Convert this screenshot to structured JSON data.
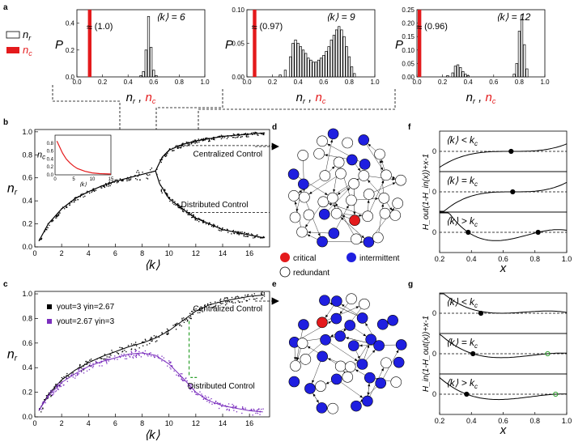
{
  "panels": {
    "a": "a",
    "b": "b",
    "c": "c",
    "d": "d",
    "e": "e",
    "f": "f",
    "g": "g"
  },
  "legend_a": {
    "nr": "n",
    "nr_sub": "r",
    "nc": "n",
    "nc_sub": "c"
  },
  "legend_c": {
    "s1": "γout=3 γin=2.67",
    "s2": "γout=2.67 γin=3"
  },
  "network_legend": {
    "critical": "critical",
    "intermittent": "intermittent",
    "redundant": "redundant"
  },
  "labels": {
    "centralized": "Centralized Control",
    "distributed": "Distributed Control",
    "kb_lt": "⟨k⟩ < k",
    "kb_eq": "⟨k⟩ = k",
    "kb_gt": "⟨k⟩ > k",
    "kc_sub": "c",
    "f_ylabel": "H_out(1-H_in(x))+x-1",
    "g_ylabel": "H_in(1-H_out(x))+x-1",
    "x": "x",
    "P": "P",
    "nrnc": "n_r , n_c",
    "kavg": "⟨k⟩",
    "inset_y": "n_c",
    "inset_x": "⟨k⟩"
  },
  "colors": {
    "red": "#e41a1c",
    "blue": "#1f1fe0",
    "purple": "#7b2fbe",
    "green": "#2ca02c"
  },
  "chart_data": [
    {
      "id": "a1",
      "type": "bar",
      "title": "⟨k⟩ = 6",
      "xlabel": "n_r , n_c",
      "ylabel": "P",
      "xlim": [
        0,
        1
      ],
      "ylim": [
        0,
        0.5
      ],
      "xticks": [
        "0.0",
        "0.2",
        "0.4",
        "0.6",
        "0.8",
        "1.0"
      ],
      "yticks": [
        "0.0",
        "0.2",
        "0.4"
      ],
      "annotation": "(1.0)",
      "nc_bars": [
        {
          "x": 0.1,
          "p": 0.5
        }
      ],
      "nr_bars": [
        {
          "x": 0.5,
          "p": 0.01
        },
        {
          "x": 0.52,
          "p": 0.04
        },
        {
          "x": 0.54,
          "p": 0.2
        },
        {
          "x": 0.56,
          "p": 0.45
        },
        {
          "x": 0.58,
          "p": 0.22
        },
        {
          "x": 0.6,
          "p": 0.05
        },
        {
          "x": 0.62,
          "p": 0.01
        }
      ]
    },
    {
      "id": "a2",
      "type": "bar",
      "title": "⟨k⟩ = 9",
      "xlabel": "n_r , n_c",
      "ylabel": "P",
      "xlim": [
        0,
        1
      ],
      "ylim": [
        0,
        0.1
      ],
      "xticks": [
        "0.0",
        "0.2",
        "0.4",
        "0.6",
        "0.8",
        "1.0"
      ],
      "yticks": [
        "0.00",
        "0.05",
        "0.10"
      ],
      "annotation": "(0.97)",
      "nc_bars": [
        {
          "x": 0.06,
          "p": 0.1
        }
      ],
      "nr_bars": [
        {
          "x": 0.26,
          "p": 0.003
        },
        {
          "x": 0.3,
          "p": 0.01
        },
        {
          "x": 0.34,
          "p": 0.03
        },
        {
          "x": 0.36,
          "p": 0.05
        },
        {
          "x": 0.38,
          "p": 0.055
        },
        {
          "x": 0.4,
          "p": 0.05
        },
        {
          "x": 0.42,
          "p": 0.045
        },
        {
          "x": 0.44,
          "p": 0.04
        },
        {
          "x": 0.46,
          "p": 0.035
        },
        {
          "x": 0.48,
          "p": 0.028
        },
        {
          "x": 0.5,
          "p": 0.025
        },
        {
          "x": 0.52,
          "p": 0.022
        },
        {
          "x": 0.54,
          "p": 0.022
        },
        {
          "x": 0.56,
          "p": 0.025
        },
        {
          "x": 0.58,
          "p": 0.028
        },
        {
          "x": 0.6,
          "p": 0.032
        },
        {
          "x": 0.62,
          "p": 0.038
        },
        {
          "x": 0.64,
          "p": 0.045
        },
        {
          "x": 0.66,
          "p": 0.055
        },
        {
          "x": 0.68,
          "p": 0.062
        },
        {
          "x": 0.7,
          "p": 0.07
        },
        {
          "x": 0.72,
          "p": 0.075
        },
        {
          "x": 0.74,
          "p": 0.07
        },
        {
          "x": 0.76,
          "p": 0.06
        },
        {
          "x": 0.78,
          "p": 0.045
        },
        {
          "x": 0.8,
          "p": 0.03
        },
        {
          "x": 0.82,
          "p": 0.015
        },
        {
          "x": 0.84,
          "p": 0.005
        }
      ]
    },
    {
      "id": "a3",
      "type": "bar",
      "title": "⟨k⟩ = 12",
      "xlabel": "n_r , n_c",
      "ylabel": "P",
      "xlim": [
        0,
        1
      ],
      "ylim": [
        0,
        0.25
      ],
      "xticks": [
        "0.0",
        "0.2",
        "0.4",
        "0.6",
        "0.8",
        "1.0"
      ],
      "yticks": [
        "0.00",
        "0.05",
        "0.10",
        "0.15",
        "0.20",
        "0.25"
      ],
      "annotation": "(0.96)",
      "nc_bars": [
        {
          "x": 0.02,
          "p": 0.25
        }
      ],
      "nr_bars": [
        {
          "x": 0.24,
          "p": 0.005
        },
        {
          "x": 0.28,
          "p": 0.015
        },
        {
          "x": 0.3,
          "p": 0.04
        },
        {
          "x": 0.32,
          "p": 0.045
        },
        {
          "x": 0.34,
          "p": 0.035
        },
        {
          "x": 0.36,
          "p": 0.02
        },
        {
          "x": 0.38,
          "p": 0.01
        },
        {
          "x": 0.4,
          "p": 0.005
        },
        {
          "x": 0.76,
          "p": 0.01
        },
        {
          "x": 0.78,
          "p": 0.05
        },
        {
          "x": 0.8,
          "p": 0.17
        },
        {
          "x": 0.82,
          "p": 0.23
        },
        {
          "x": 0.84,
          "p": 0.12
        },
        {
          "x": 0.86,
          "p": 0.03
        }
      ]
    },
    {
      "id": "b",
      "type": "scatter",
      "xlabel": "⟨k⟩",
      "ylabel": "n_r",
      "xlim": [
        0,
        17.5
      ],
      "ylim": [
        0,
        1.02
      ],
      "xticks": [
        "0",
        "2",
        "4",
        "6",
        "8",
        "10",
        "12",
        "14",
        "16"
      ],
      "yticks": [
        "0.0",
        "0.2",
        "0.4",
        "0.6",
        "0.8",
        "1.0"
      ],
      "lower_branch": [
        [
          0.3,
          0.05
        ],
        [
          1,
          0.2
        ],
        [
          2,
          0.33
        ],
        [
          3,
          0.42
        ],
        [
          4,
          0.48
        ],
        [
          5,
          0.53
        ],
        [
          6,
          0.57
        ],
        [
          7,
          0.6
        ],
        [
          8,
          0.63
        ],
        [
          9,
          0.66
        ]
      ],
      "upper_branch": [
        [
          9,
          0.66
        ],
        [
          9.5,
          0.78
        ],
        [
          10,
          0.84
        ],
        [
          11,
          0.89
        ],
        [
          12,
          0.92
        ],
        [
          14,
          0.96
        ],
        [
          17,
          0.99
        ]
      ],
      "distributed_branch": [
        [
          9,
          0.66
        ],
        [
          9.3,
          0.55
        ],
        [
          10,
          0.42
        ],
        [
          11,
          0.33
        ],
        [
          12,
          0.25
        ],
        [
          14,
          0.15
        ],
        [
          17,
          0.08
        ]
      ]
    },
    {
      "id": "b_inset",
      "type": "line",
      "xlabel": "⟨k⟩",
      "ylabel": "n_c",
      "xlim": [
        0,
        15
      ],
      "ylim": [
        0,
        1
      ],
      "xticks": [
        "0",
        "5",
        "10",
        "15"
      ],
      "yticks": [
        "0.0",
        "0.2",
        "0.4",
        "0.6",
        "0.8"
      ],
      "x": [
        0.5,
        1,
        2,
        3,
        4,
        5,
        6,
        8,
        10,
        12,
        15
      ],
      "y": [
        0.85,
        0.75,
        0.55,
        0.4,
        0.3,
        0.22,
        0.16,
        0.09,
        0.05,
        0.03,
        0.02
      ]
    },
    {
      "id": "c",
      "type": "scatter",
      "xlabel": "⟨k⟩",
      "ylabel": "n_r",
      "xlim": [
        0,
        17.5
      ],
      "ylim": [
        0,
        1.02
      ],
      "xticks": [
        "0",
        "2",
        "4",
        "6",
        "8",
        "10",
        "12",
        "14",
        "16"
      ],
      "yticks": [
        "0.0",
        "0.2",
        "0.4",
        "0.6",
        "0.8",
        "1.0"
      ],
      "series": [
        {
          "name": "γout=3 γin=2.67",
          "x": [
            0.3,
            1,
            2,
            3,
            4,
            5,
            6,
            7,
            8,
            9,
            10,
            11,
            12,
            13,
            14,
            15,
            16,
            17
          ],
          "y": [
            0.05,
            0.18,
            0.3,
            0.38,
            0.44,
            0.49,
            0.53,
            0.57,
            0.6,
            0.64,
            0.7,
            0.78,
            0.86,
            0.91,
            0.94,
            0.96,
            0.98,
            0.99
          ]
        },
        {
          "name": "γout=2.67 γin=3",
          "x": [
            0.3,
            1,
            2,
            3,
            4,
            5,
            6,
            7,
            8,
            9,
            10,
            11,
            12,
            13,
            14,
            15,
            16,
            17
          ],
          "y": [
            0.05,
            0.17,
            0.28,
            0.35,
            0.41,
            0.45,
            0.48,
            0.51,
            0.52,
            0.5,
            0.43,
            0.32,
            0.2,
            0.13,
            0.09,
            0.07,
            0.05,
            0.04
          ]
        }
      ]
    },
    {
      "id": "f",
      "type": "line",
      "xlabel": "x",
      "xlim": [
        0.2,
        1.0
      ],
      "xticks": [
        "0.2",
        "0.4",
        "0.6",
        "0.8",
        "1.0"
      ],
      "subpanels": [
        {
          "label": "⟨k⟩ < kc",
          "roots": [
            0.65
          ]
        },
        {
          "label": "⟨k⟩ = kc",
          "roots": [
            0.66
          ]
        },
        {
          "label": "⟨k⟩ > kc",
          "roots": [
            0.38,
            0.82
          ]
        }
      ]
    },
    {
      "id": "g",
      "type": "line",
      "xlabel": "x",
      "xlim": [
        0.2,
        1.0
      ],
      "xticks": [
        "0.2",
        "0.4",
        "0.6",
        "0.8",
        "1.0"
      ],
      "subpanels": [
        {
          "label": "⟨k⟩ < kc",
          "roots": [
            0.46
          ]
        },
        {
          "label": "⟨k⟩ = kc",
          "roots": [
            0.41,
            0.88
          ]
        },
        {
          "label": "⟨k⟩ > kc",
          "roots": [
            0.37,
            0.93
          ]
        }
      ]
    }
  ]
}
